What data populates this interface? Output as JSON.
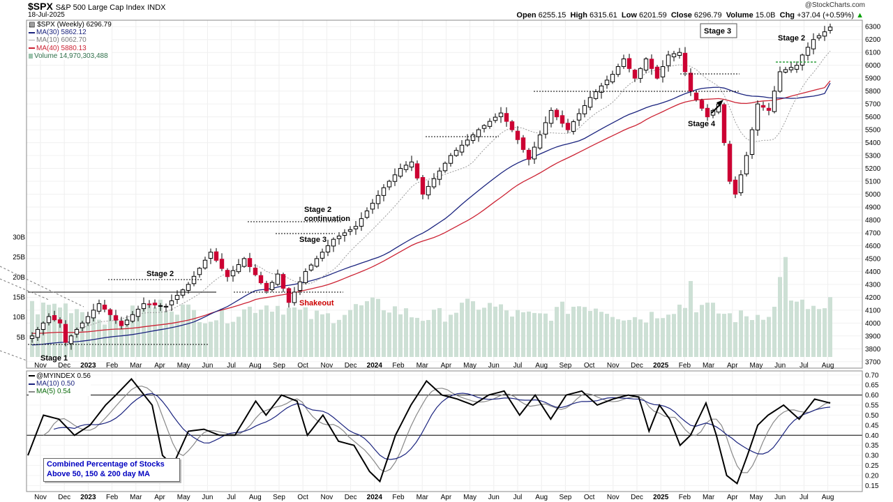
{
  "header": {
    "symbol": "$SPX",
    "name": "S&P 500 Large Cap Index",
    "exchange": "INDX",
    "date": "18-Jul-2025",
    "logo": "@StockCharts.com",
    "ohlc": {
      "open_label": "Open",
      "open": "6255.15",
      "high_label": "High",
      "high": "6315.61",
      "low_label": "Low",
      "low": "6201.59",
      "close_label": "Close",
      "close": "6296.79",
      "volume_label": "Volume",
      "volume": "15.0B",
      "chg_label": "Chg",
      "chg": "+37.04 (+0.59%)"
    }
  },
  "legend_main": {
    "price": "$SPX (Weekly) 6296.79",
    "ma30": "MA(30) 5862.12",
    "ma10": "MA(10) 6062.70",
    "ma40": "MA(40) 5880.13",
    "volume": "Volume 14,970,303,488"
  },
  "legend_indicator": {
    "myindex": "@MYINDEX 0.56",
    "ma10": "MA(10) 0.50",
    "ma5": "MA(5) 0.54"
  },
  "indicator_box": {
    "line1": "Combined Percentage of Stocks",
    "line2": "Above 50, 150 & 200 day MA"
  },
  "colors": {
    "up": "#ffffff",
    "down": "#cc0033",
    "ma30": "#1a237e",
    "ma40": "#cc2233",
    "ma10": "#999999",
    "volume": "#cde0d5",
    "indicator": "#000000",
    "ind_ma10": "#1a237e",
    "ind_ma5": "#888888",
    "annotation_red": "#cc0000",
    "box_text": "#0000c0"
  },
  "chart_data": [
    {
      "type": "candlestick",
      "title": "$SPX (Weekly)",
      "ylim": [
        3650,
        6350
      ],
      "yticks": [
        3700,
        3800,
        3900,
        4000,
        4100,
        4200,
        4300,
        4400,
        4500,
        4600,
        4700,
        4800,
        4900,
        5000,
        5100,
        5200,
        5300,
        5400,
        5500,
        5600,
        5700,
        5800,
        5900,
        6000,
        6100,
        6200,
        6300
      ],
      "x_labels": [
        "Nov",
        "Dec",
        "2023",
        "Feb",
        "Mar",
        "Apr",
        "May",
        "Jun",
        "Jul",
        "Aug",
        "Sep",
        "Oct",
        "Nov",
        "Dec",
        "2024",
        "Feb",
        "Mar",
        "Apr",
        "May",
        "Jun",
        "Jul",
        "Aug",
        "Sep",
        "Oct",
        "Nov",
        "Dec",
        "2025",
        "Feb",
        "Mar",
        "Apr",
        "May",
        "Jun",
        "Jul",
        "Aug"
      ],
      "waypoints": [
        [
          0,
          3900
        ],
        [
          3,
          4050
        ],
        [
          5,
          4000
        ],
        [
          6,
          3850
        ],
        [
          8,
          3950
        ],
        [
          12,
          4150
        ],
        [
          16,
          3980
        ],
        [
          20,
          4150
        ],
        [
          24,
          4130
        ],
        [
          28,
          4300
        ],
        [
          32,
          4550
        ],
        [
          35,
          4360
        ],
        [
          38,
          4500
        ],
        [
          42,
          4250
        ],
        [
          44,
          4380
        ],
        [
          46,
          4160
        ],
        [
          49,
          4400
        ],
        [
          54,
          4650
        ],
        [
          58,
          4750
        ],
        [
          63,
          5050
        ],
        [
          66,
          5200
        ],
        [
          68,
          5250
        ],
        [
          70,
          5000
        ],
        [
          75,
          5300
        ],
        [
          80,
          5500
        ],
        [
          84,
          5630
        ],
        [
          86,
          5500
        ],
        [
          89,
          5270
        ],
        [
          93,
          5650
        ],
        [
          96,
          5500
        ],
        [
          100,
          5750
        ],
        [
          104,
          5930
        ],
        [
          106,
          6050
        ],
        [
          108,
          5900
        ],
        [
          110,
          6050
        ],
        [
          112,
          5900
        ],
        [
          114,
          6080
        ],
        [
          116,
          6100
        ],
        [
          118,
          5800
        ],
        [
          121,
          5600
        ],
        [
          123,
          5700
        ],
        [
          125,
          5100
        ],
        [
          126,
          5000
        ],
        [
          128,
          5300
        ],
        [
          130,
          5700
        ],
        [
          132,
          5650
        ],
        [
          134,
          5950
        ],
        [
          137,
          6000
        ],
        [
          138,
          6080
        ],
        [
          140,
          6200
        ],
        [
          142,
          6260
        ],
        [
          143,
          6297
        ]
      ],
      "ma30": {
        "start": 3830,
        "end": 5862
      },
      "ma40": {
        "start": 3920,
        "end": 5880
      },
      "ma10": {
        "last": 6063
      },
      "annotations": [
        "Stage 1",
        "Stage 2",
        "Stage 2 continuation",
        "Stage 3",
        "Shakeout",
        "Stage 3",
        "Stage 4",
        "Stage 2"
      ]
    },
    {
      "type": "bar",
      "title": "Volume",
      "ylim": [
        0,
        30
      ],
      "yticks": [
        5,
        10,
        15,
        20,
        25,
        30
      ],
      "ytick_labels": [
        "5B",
        "10B",
        "15B",
        "20B",
        "25B",
        "30B"
      ],
      "base": 11.5,
      "last": 14.97
    },
    {
      "type": "line",
      "title": "@MYINDEX",
      "ylim": [
        0.12,
        0.72
      ],
      "yticks": [
        0.15,
        0.2,
        0.25,
        0.3,
        0.35,
        0.4,
        0.45,
        0.5,
        0.55,
        0.6,
        0.65,
        0.7
      ],
      "ytick_labels": [
        "0.15",
        "0.20",
        "0.25",
        "0.30",
        "0.35",
        "0.40",
        "0.45",
        "0.50",
        "0.55",
        "0.60",
        "0.65",
        "0.70"
      ],
      "reference_lines": [
        0.6,
        0.4
      ],
      "x_labels": [
        "Nov",
        "Dec",
        "2023",
        "Feb",
        "Mar",
        "Apr",
        "May",
        "Jun",
        "Jul",
        "Aug",
        "Sep",
        "Oct",
        "Nov",
        "Dec",
        "2024",
        "Feb",
        "Mar",
        "Apr",
        "May",
        "Jun",
        "Jul",
        "Aug",
        "Sep",
        "Oct",
        "Nov",
        "Dec",
        "2025",
        "Feb",
        "Mar",
        "Apr",
        "May",
        "Jun",
        "Jul",
        "Aug"
      ],
      "waypoints": [
        [
          0,
          0.3
        ],
        [
          3,
          0.5
        ],
        [
          6,
          0.48
        ],
        [
          9,
          0.4
        ],
        [
          12,
          0.45
        ],
        [
          15,
          0.55
        ],
        [
          17,
          0.6
        ],
        [
          20,
          0.68
        ],
        [
          24,
          0.55
        ],
        [
          26,
          0.3
        ],
        [
          28,
          0.25
        ],
        [
          31,
          0.42
        ],
        [
          34,
          0.43
        ],
        [
          37,
          0.4
        ],
        [
          40,
          0.4
        ],
        [
          44,
          0.57
        ],
        [
          46,
          0.5
        ],
        [
          49,
          0.6
        ],
        [
          52,
          0.57
        ],
        [
          54,
          0.4
        ],
        [
          57,
          0.5
        ],
        [
          60,
          0.37
        ],
        [
          63,
          0.35
        ],
        [
          66,
          0.22
        ],
        [
          68,
          0.17
        ],
        [
          71,
          0.4
        ],
        [
          74,
          0.55
        ],
        [
          77,
          0.67
        ],
        [
          80,
          0.6
        ],
        [
          83,
          0.58
        ],
        [
          86,
          0.55
        ],
        [
          89,
          0.6
        ],
        [
          92,
          0.62
        ],
        [
          95,
          0.5
        ],
        [
          98,
          0.6
        ],
        [
          101,
          0.48
        ],
        [
          104,
          0.6
        ],
        [
          107,
          0.62
        ],
        [
          110,
          0.55
        ],
        [
          113,
          0.58
        ],
        [
          116,
          0.6
        ],
        [
          118,
          0.59
        ],
        [
          120,
          0.42
        ],
        [
          122,
          0.55
        ],
        [
          124,
          0.48
        ],
        [
          126,
          0.35
        ],
        [
          128,
          0.4
        ],
        [
          131,
          0.56
        ],
        [
          133,
          0.4
        ],
        [
          135,
          0.2
        ],
        [
          137,
          0.16
        ],
        [
          139,
          0.3
        ],
        [
          141,
          0.45
        ],
        [
          143,
          0.5
        ],
        [
          146,
          0.55
        ],
        [
          149,
          0.48
        ],
        [
          152,
          0.58
        ],
        [
          155,
          0.56
        ]
      ],
      "last": 0.56,
      "ma10_last": 0.5,
      "ma5_last": 0.54
    }
  ]
}
